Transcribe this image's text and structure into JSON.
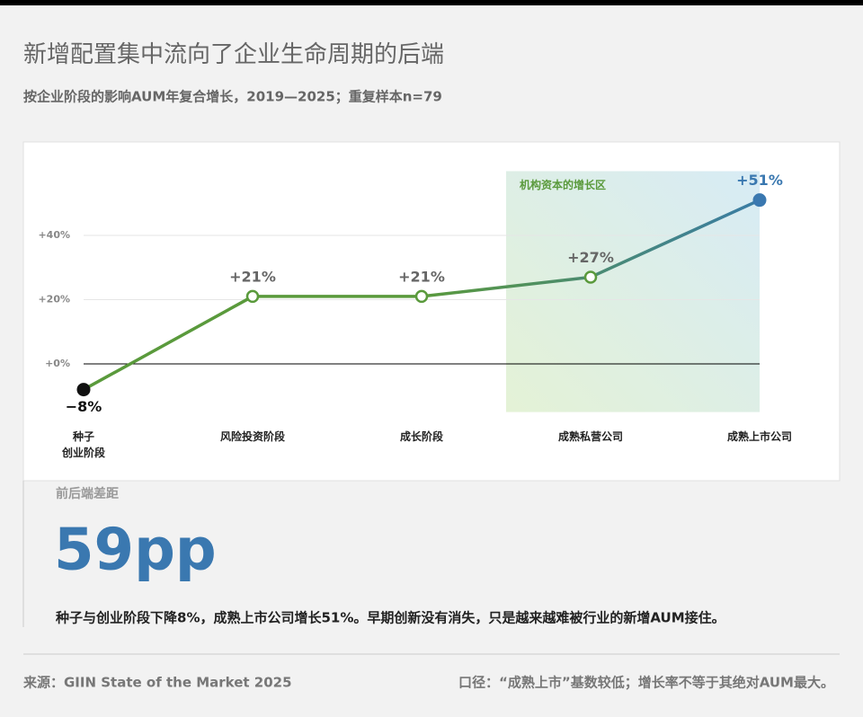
{
  "chart_data": {
    "type": "line",
    "title": "新增配置集中流向了企业生命周期的后端",
    "subtitle": "按企业阶段的影响AUM年复合增长，2019—2025；重复样本n=79",
    "categories": [
      "种子\n创业阶段",
      "风险投资阶段",
      "成长阶段",
      "成熟私营公司",
      "成熟上市公司"
    ],
    "values": [
      -8,
      21,
      21,
      27,
      51
    ],
    "value_labels": [
      "−8%",
      "+21%",
      "+21%",
      "+27%",
      "+51%"
    ],
    "value_label_colors": [
      "#111111",
      "#666666",
      "#666666",
      "#666666",
      "#3a78b0"
    ],
    "point_colors": [
      "#111111",
      "#5a9a3c",
      "#5a9a3c",
      "#5a9a3c",
      "#3a78b0"
    ],
    "point_hollow": [
      false,
      true,
      true,
      true,
      false
    ],
    "line_gradient": [
      "#5a9a3c",
      "#3a7ca5"
    ],
    "ylim": [
      -15,
      60
    ],
    "yticks": [
      {
        "value": 0,
        "label": "+0%"
      },
      {
        "value": 20,
        "label": "+20%"
      },
      {
        "value": 40,
        "label": "+40%"
      }
    ],
    "grid": true,
    "highlight": {
      "label": "机构资本的增长区",
      "categories": [
        "成熟私营公司",
        "成熟上市公司"
      ]
    }
  },
  "callout": {
    "label": "前后端差距",
    "value": "59pp",
    "text": "种子与创业阶段下降8%，成熟上市公司增长51%。早期创新没有消失，只是越来越难被行业的新增AUM接住。"
  },
  "footer": {
    "source": "来源：GIIN State of the Market 2025",
    "note": "口径：“成熟上市”基数较低；增长率不等于其绝对AUM最大。"
  }
}
